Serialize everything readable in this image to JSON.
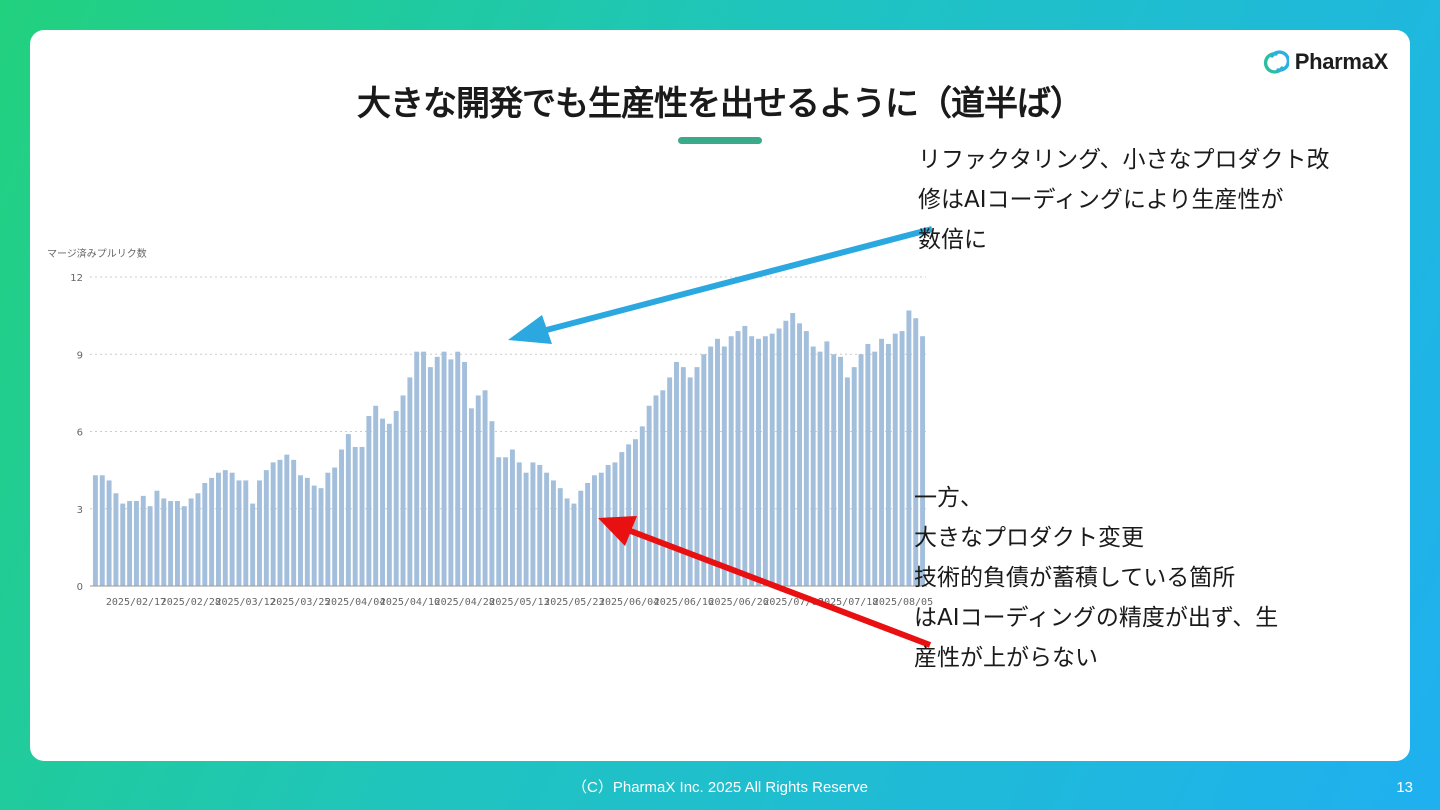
{
  "slide": {
    "title": "大きな開発でも生産性を出せるように（道半ば）",
    "logo_text": "PharmaX",
    "footer": "（C）PharmaX Inc. 2025  All Rights Reserve",
    "page_number": "13"
  },
  "annotations": {
    "top": [
      "リファクタリング、小さなプロダクト改",
      "修はAIコーディングにより生産性が",
      "数倍に"
    ],
    "bottom": [
      "一方、",
      "大きなプロダクト変更",
      "技術的負債が蓄積している箇所",
      "はAIコーディングの精度が出ず、生",
      "産性が上がらない"
    ],
    "top_arrow_color": "#2ba8e0",
    "bottom_arrow_color": "#e81010"
  },
  "chart_data": {
    "type": "bar",
    "ylabel": "マージ済みプルリク数",
    "ylim": [
      0,
      12
    ],
    "yticks": [
      0,
      3,
      6,
      9,
      12
    ],
    "grid": true,
    "bar_color": "#a3bfdc",
    "x_tick_labels": [
      "2025/02/17",
      "2025/02/28",
      "2025/03/12",
      "2025/03/25",
      "2025/04/04",
      "2025/04/16",
      "2025/04/28",
      "2025/05/13",
      "2025/05/23",
      "2025/06/04",
      "2025/06/16",
      "2025/06/26",
      "2025/07/08",
      "2025/07/18",
      "2025/08/05"
    ],
    "values": [
      4.3,
      4.3,
      4.1,
      3.6,
      3.2,
      3.3,
      3.3,
      3.5,
      3.1,
      3.7,
      3.4,
      3.3,
      3.3,
      3.1,
      3.4,
      3.6,
      4.0,
      4.2,
      4.4,
      4.5,
      4.4,
      4.1,
      4.1,
      3.2,
      4.1,
      4.5,
      4.8,
      4.9,
      5.1,
      4.9,
      4.3,
      4.2,
      3.9,
      3.8,
      4.4,
      4.6,
      5.3,
      5.9,
      5.4,
      5.4,
      6.6,
      7.0,
      6.5,
      6.3,
      6.8,
      7.4,
      8.1,
      9.1,
      9.1,
      8.5,
      8.9,
      9.1,
      8.8,
      9.1,
      8.7,
      6.9,
      7.4,
      7.6,
      6.4,
      5.0,
      5.0,
      5.3,
      4.8,
      4.4,
      4.8,
      4.7,
      4.4,
      4.1,
      3.8,
      3.4,
      3.2,
      3.7,
      4.0,
      4.3,
      4.4,
      4.7,
      4.8,
      5.2,
      5.5,
      5.7,
      6.2,
      7.0,
      7.4,
      7.6,
      8.1,
      8.7,
      8.5,
      8.1,
      8.5,
      9.0,
      9.3,
      9.6,
      9.3,
      9.7,
      9.9,
      10.1,
      9.7,
      9.6,
      9.7,
      9.8,
      10.0,
      10.3,
      10.6,
      10.2,
      9.9,
      9.3,
      9.1,
      9.5,
      9.0,
      8.9,
      8.1,
      8.5,
      9.0,
      9.4,
      9.1,
      9.6,
      9.4,
      9.8,
      9.9,
      10.7,
      10.4,
      9.7
    ]
  }
}
